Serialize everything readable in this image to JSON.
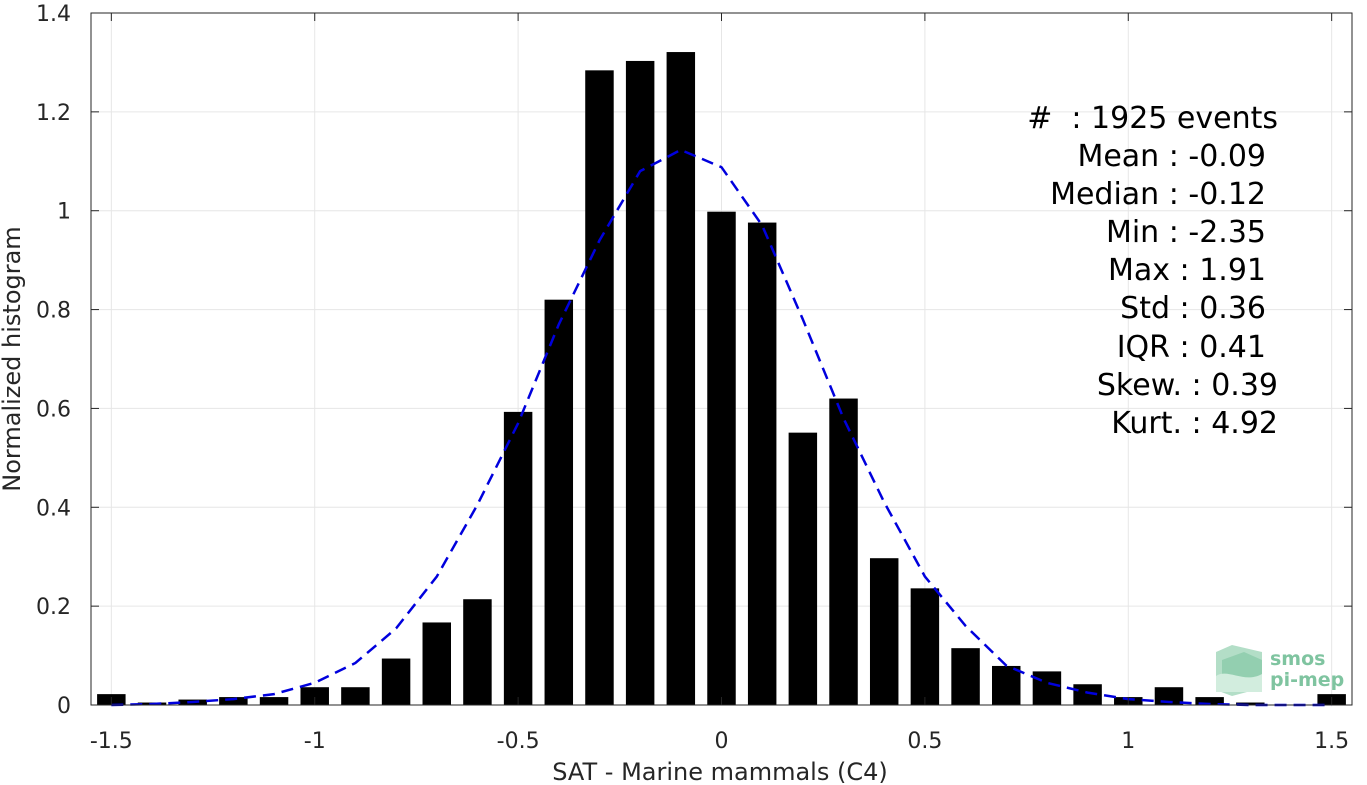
{
  "chart_data": {
    "type": "bar",
    "xlabel": "SAT - Marine mammals (C4)",
    "ylabel": "Normalized histogram",
    "xlim": [
      -1.55,
      1.55
    ],
    "ylim": [
      0,
      1.4
    ],
    "xticks": [
      -1.5,
      -1,
      -0.5,
      0,
      0.5,
      1,
      1.5
    ],
    "xtick_labels": [
      "-1.5",
      "-1",
      "-0.5",
      "0",
      "0.5",
      "1",
      "1.5"
    ],
    "yticks": [
      0,
      0.2,
      0.4,
      0.6,
      0.8,
      1,
      1.2,
      1.4
    ],
    "ytick_labels": [
      "0",
      "0.2",
      "0.4",
      "0.6",
      "0.8",
      "1",
      "1.2",
      "1.4"
    ],
    "grid": true,
    "bar_width": 0.07,
    "bar_color": "#000000",
    "bars": {
      "x": [
        -1.5,
        -1.4,
        -1.3,
        -1.2,
        -1.1,
        -1.0,
        -0.9,
        -0.8,
        -0.7,
        -0.6,
        -0.5,
        -0.4,
        -0.3,
        -0.2,
        -0.1,
        0.0,
        0.1,
        0.2,
        0.3,
        0.4,
        0.5,
        0.6,
        0.7,
        0.8,
        0.9,
        1.0,
        1.1,
        1.2,
        1.3,
        1.4,
        1.5
      ],
      "values": [
        0.022,
        0.005,
        0.011,
        0.016,
        0.016,
        0.036,
        0.036,
        0.094,
        0.167,
        0.214,
        0.593,
        0.82,
        1.284,
        1.303,
        1.321,
        0.998,
        0.976,
        0.551,
        0.62,
        0.297,
        0.236,
        0.115,
        0.079,
        0.068,
        0.042,
        0.016,
        0.036,
        0.016,
        0.005,
        0.0,
        0.022
      ]
    },
    "fit_curve": {
      "style": "dashed",
      "color": "#0000dd",
      "x": [
        -1.5,
        -1.4,
        -1.3,
        -1.2,
        -1.1,
        -1.0,
        -0.9,
        -0.8,
        -0.7,
        -0.6,
        -0.5,
        -0.4,
        -0.3,
        -0.2,
        -0.1,
        0.0,
        0.1,
        0.2,
        0.3,
        0.4,
        0.5,
        0.6,
        0.7,
        0.8,
        0.9,
        1.0,
        1.1,
        1.2,
        1.3,
        1.4,
        1.5
      ],
      "y": [
        0.0,
        0.002,
        0.006,
        0.012,
        0.022,
        0.045,
        0.085,
        0.155,
        0.26,
        0.405,
        0.57,
        0.77,
        0.94,
        1.08,
        1.123,
        1.088,
        0.97,
        0.78,
        0.58,
        0.41,
        0.26,
        0.16,
        0.08,
        0.045,
        0.025,
        0.012,
        0.006,
        0.002,
        0.0,
        0.0,
        0.0
      ]
    }
  },
  "stats": [
    "#  : 1925 events",
    "Mean : -0.09",
    "Median : -0.12",
    "Min : -2.35",
    "Max : 1.91",
    "Std : 0.36",
    "IQR : 0.41",
    "Skew. : 0.39",
    "Kurt. : 4.92"
  ],
  "logo": {
    "line1": "smos",
    "line2": "pi-mep",
    "color": "#7fc4a0"
  }
}
